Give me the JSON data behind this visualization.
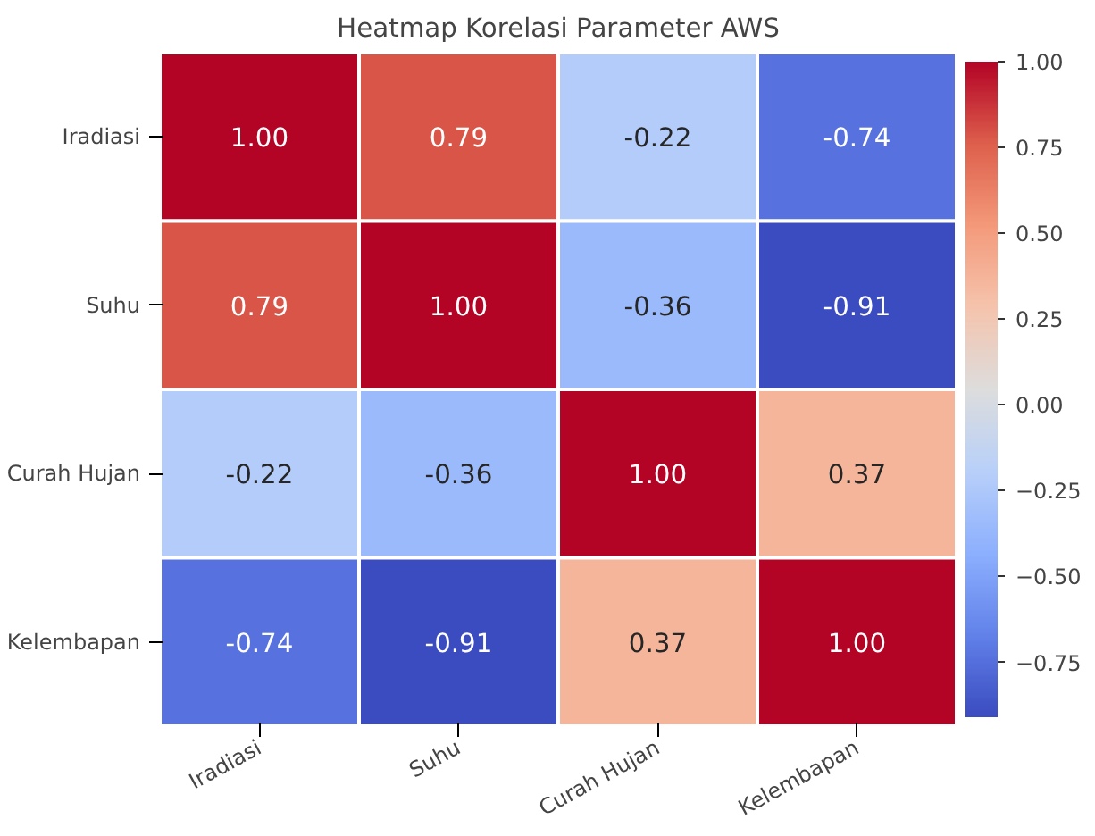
{
  "chart_data": {
    "type": "heatmap",
    "title": "Heatmap Korelasi Parameter AWS",
    "categories": [
      "Iradiasi",
      "Suhu",
      "Curah Hujan",
      "Kelembapan"
    ],
    "y_categories": [
      "Iradiasi",
      "Suhu",
      "Curah Hujan",
      "Kelembapan"
    ],
    "cells": [
      [
        1.0,
        0.79,
        -0.22,
        -0.74
      ],
      [
        0.79,
        1.0,
        -0.36,
        -0.91
      ],
      [
        -0.22,
        -0.36,
        1.0,
        0.37
      ],
      [
        -0.74,
        -0.91,
        0.37,
        1.0
      ]
    ],
    "cell_labels": [
      [
        "1.00",
        "0.79",
        "-0.22",
        "-0.74"
      ],
      [
        "0.79",
        "1.00",
        "-0.36",
        "-0.91"
      ],
      [
        "-0.22",
        "-0.36",
        "1.00",
        "0.37"
      ],
      [
        "-0.74",
        "-0.91",
        "0.37",
        "1.00"
      ]
    ],
    "clim": [
      -0.91,
      1.0
    ],
    "cticks": [
      {
        "value": -0.75,
        "label": "−0.75"
      },
      {
        "value": -0.5,
        "label": "−0.50"
      },
      {
        "value": -0.25,
        "label": "−0.25"
      },
      {
        "value": 0.0,
        "label": "0.00"
      },
      {
        "value": 0.25,
        "label": "0.25"
      },
      {
        "value": 0.5,
        "label": "0.50"
      },
      {
        "value": 0.75,
        "label": "0.75"
      },
      {
        "value": 1.0,
        "label": "1.00"
      }
    ]
  }
}
